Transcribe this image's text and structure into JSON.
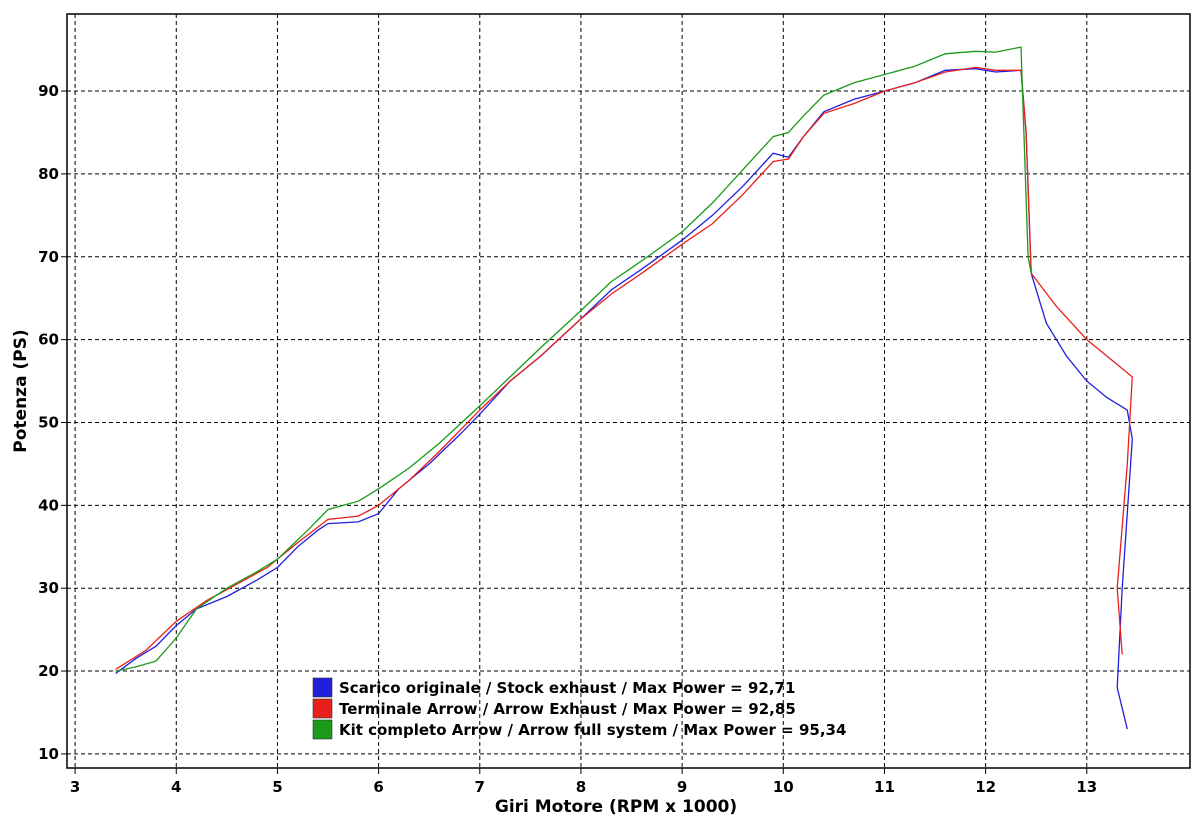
{
  "chart_data": {
    "type": "line",
    "x_label": "Giri Motore (RPM x 1000)",
    "y_label": "Potenza (PS)",
    "xlim": [
      2.92,
      14.02
    ],
    "ylim": [
      8.3,
      99.3
    ],
    "xticks": [
      3,
      4,
      5,
      6,
      7,
      8,
      9,
      10,
      11,
      12,
      13
    ],
    "yticks": [
      10,
      20,
      30,
      40,
      50,
      60,
      70,
      80,
      90
    ],
    "grid": true,
    "legend": "lower center",
    "series": [
      {
        "name": "Scarico originale / Stock exhaust / Max Power = 92,71",
        "color": "#1f1fdc",
        "x": [
          3.4,
          3.6,
          3.8,
          4.0,
          4.2,
          4.5,
          4.8,
          5.0,
          5.2,
          5.4,
          5.5,
          5.8,
          6.0,
          6.2,
          6.5,
          6.8,
          7.0,
          7.3,
          7.6,
          8.0,
          8.3,
          8.6,
          9.0,
          9.3,
          9.6,
          9.9,
          10.05,
          10.2,
          10.4,
          10.7,
          11.0,
          11.3,
          11.6,
          11.9,
          12.1,
          12.35,
          12.4,
          12.45,
          12.6,
          12.8,
          13.0,
          13.2,
          13.4,
          13.45,
          13.35,
          13.3,
          13.4
        ],
        "values": [
          19.7,
          21.5,
          23,
          25.5,
          27.5,
          29,
          31,
          32.5,
          35,
          37,
          37.8,
          38,
          39,
          42,
          45,
          48.5,
          51,
          55,
          58,
          62.5,
          66,
          68.5,
          72,
          75,
          78.5,
          82.5,
          82,
          84.5,
          87.5,
          89,
          90,
          91,
          92.5,
          92.7,
          92.3,
          92.5,
          85,
          68,
          62,
          58,
          55,
          53,
          51.5,
          48,
          30,
          18,
          13
        ]
      },
      {
        "name": "Terminale Arrow / Arrow Exhaust / Max Power = 92,85",
        "color": "#e8201c",
        "x": [
          3.4,
          3.7,
          4.0,
          4.3,
          4.6,
          4.9,
          5.2,
          5.5,
          5.8,
          6.0,
          6.3,
          6.6,
          7.0,
          7.3,
          7.6,
          8.0,
          8.3,
          8.6,
          9.0,
          9.3,
          9.6,
          9.9,
          10.05,
          10.2,
          10.4,
          10.7,
          11.0,
          11.3,
          11.6,
          11.9,
          12.1,
          12.35,
          12.4,
          12.45,
          12.7,
          13.0,
          13.3,
          13.45,
          13.4,
          13.3,
          13.35
        ],
        "values": [
          20.2,
          22.5,
          26,
          28.5,
          30.5,
          32.5,
          35.5,
          38.3,
          38.7,
          40,
          43,
          46.5,
          51.5,
          55,
          58,
          62.5,
          65.5,
          68,
          71.5,
          74,
          77.5,
          81.5,
          81.8,
          84.5,
          87.3,
          88.5,
          90,
          91,
          92.3,
          92.85,
          92.5,
          92.5,
          85,
          68,
          64,
          60,
          57,
          55.5,
          45,
          30,
          22
        ]
      },
      {
        "name": "Kit completo Arrow / Arrow full system / Max Power = 95,34",
        "color": "#1a9a1a",
        "x": [
          3.4,
          3.6,
          3.8,
          4.0,
          4.2,
          4.5,
          4.8,
          5.0,
          5.3,
          5.5,
          5.8,
          6.0,
          6.3,
          6.6,
          7.0,
          7.3,
          7.6,
          8.0,
          8.3,
          8.6,
          9.0,
          9.3,
          9.6,
          9.9,
          10.05,
          10.2,
          10.4,
          10.7,
          11.0,
          11.3,
          11.6,
          11.9,
          12.1,
          12.35,
          12.42,
          12.45
        ],
        "values": [
          20,
          20.5,
          21.2,
          24,
          27.5,
          30,
          32,
          33.5,
          37,
          39.5,
          40.5,
          42,
          44.5,
          47.5,
          52,
          55.5,
          59,
          63.5,
          67,
          69.5,
          73,
          76.5,
          80.5,
          84.5,
          85,
          87,
          89.5,
          91,
          92,
          93,
          94.5,
          94.8,
          94.7,
          95.3,
          70,
          68
        ]
      }
    ]
  }
}
